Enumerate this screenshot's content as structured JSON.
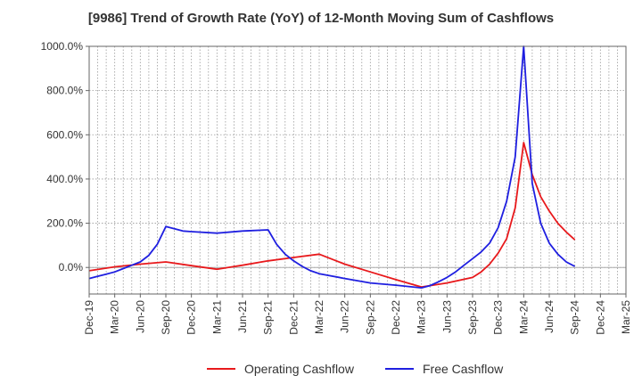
{
  "chart_data": {
    "type": "line",
    "title": "[9986]  Trend of Growth Rate (YoY) of 12-Month Moving Sum of Cashflows",
    "xlabel": "",
    "ylabel": "",
    "ylim": [
      -120,
      1000
    ],
    "yticks": [
      0,
      200,
      400,
      600,
      800,
      1000
    ],
    "ytick_labels": [
      "0.0%",
      "200.0%",
      "400.0%",
      "600.0%",
      "800.0%",
      "1000.0%"
    ],
    "x_start": "Dec-19",
    "x_end": "Mar-25",
    "xtick_labels": [
      "Dec-19",
      "Mar-20",
      "Jun-20",
      "Sep-20",
      "Dec-20",
      "Mar-21",
      "Jun-21",
      "Sep-21",
      "Dec-21",
      "Mar-22",
      "Jun-22",
      "Sep-22",
      "Dec-22",
      "Mar-23",
      "Jun-23",
      "Sep-23",
      "Dec-23",
      "Mar-24",
      "Jun-24",
      "Sep-24",
      "Dec-24",
      "Mar-25"
    ],
    "grid": true,
    "legend_position": "bottom",
    "series": [
      {
        "name": "Operating Cashflow",
        "color": "#e8191c",
        "x": [
          "Dec-19",
          "Mar-20",
          "Jun-20",
          "Sep-20",
          "Dec-20",
          "Mar-21",
          "Jun-21",
          "Sep-21",
          "Dec-21",
          "Mar-22",
          "Jun-22",
          "Sep-22",
          "Dec-22",
          "Mar-23",
          "Jun-23",
          "Sep-23",
          "Oct-23",
          "Nov-23",
          "Dec-23",
          "Jan-24",
          "Feb-24",
          "Mar-24",
          "Apr-24",
          "May-24",
          "Jun-24",
          "Jul-24",
          "Aug-24",
          "Sep-24"
        ],
        "values": [
          -15,
          3,
          15,
          25,
          8,
          -8,
          10,
          30,
          45,
          60,
          15,
          -20,
          -55,
          -88,
          -70,
          -45,
          -20,
          15,
          65,
          130,
          270,
          565,
          420,
          320,
          255,
          200,
          160,
          125
        ]
      },
      {
        "name": "Free Cashflow",
        "color": "#1f1fe0",
        "x": [
          "Dec-19",
          "Jan-20",
          "Feb-20",
          "Mar-20",
          "Apr-20",
          "May-20",
          "Jun-20",
          "Jul-20",
          "Aug-20",
          "Sep-20",
          "Oct-20",
          "Nov-20",
          "Dec-20",
          "Mar-21",
          "Jun-21",
          "Sep-21",
          "Oct-21",
          "Nov-21",
          "Dec-21",
          "Jan-22",
          "Feb-22",
          "Mar-22",
          "Jun-22",
          "Sep-22",
          "Dec-22",
          "Mar-23",
          "Apr-23",
          "May-23",
          "Jun-23",
          "Jul-23",
          "Aug-23",
          "Sep-23",
          "Oct-23",
          "Nov-23",
          "Dec-23",
          "Jan-24",
          "Feb-24",
          "Mar-24",
          "Apr-24",
          "May-24",
          "Jun-24",
          "Jul-24",
          "Aug-24",
          "Sep-24"
        ],
        "values": [
          -50,
          -40,
          -30,
          -20,
          -5,
          10,
          25,
          55,
          105,
          185,
          175,
          165,
          162,
          155,
          165,
          170,
          105,
          60,
          30,
          5,
          -15,
          -28,
          -50,
          -70,
          -80,
          -92,
          -82,
          -65,
          -45,
          -20,
          10,
          40,
          70,
          110,
          180,
          300,
          500,
          1000,
          380,
          200,
          110,
          60,
          25,
          5
        ]
      }
    ]
  }
}
